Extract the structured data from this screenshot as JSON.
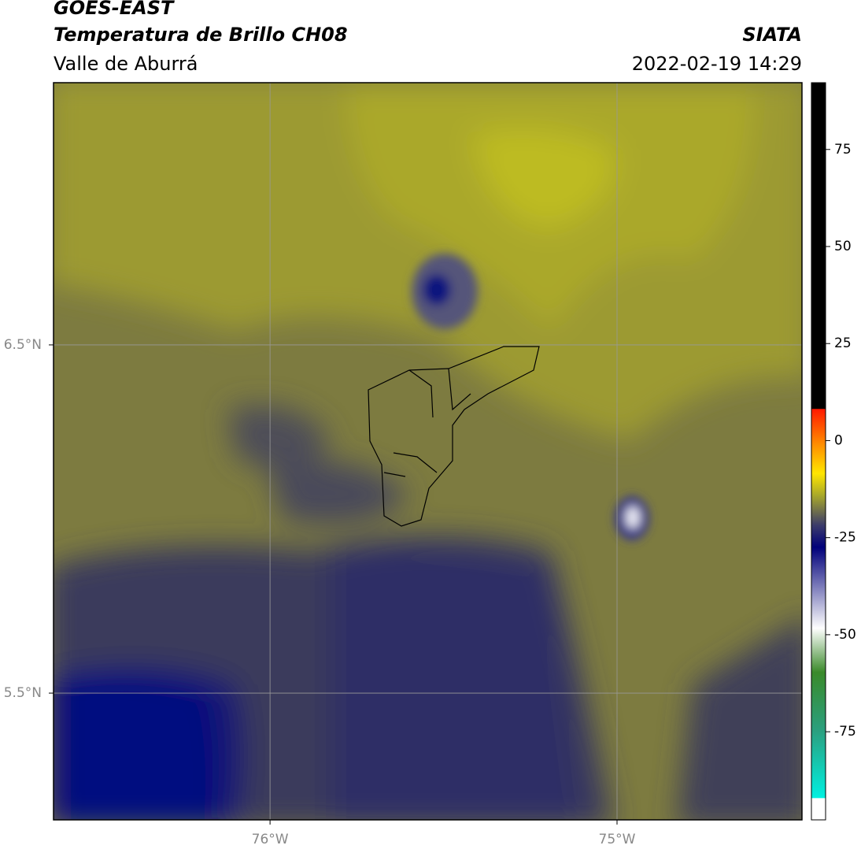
{
  "header": {
    "title": "GOES-EAST",
    "subtitle": "Temperatura de Brillo CH08",
    "region": "Valle de Aburrá",
    "source": "SIATA",
    "datetime": "2022-02-19 14:29"
  },
  "map": {
    "xlim": [
      -76.624,
      -74.467
    ],
    "ylim": [
      5.136,
      7.253
    ],
    "xticks": [
      {
        "value": -76,
        "label": "76°W"
      },
      {
        "value": -75,
        "label": "75°W"
      }
    ],
    "yticks": [
      {
        "value": 6.5,
        "label": "6.5°N"
      },
      {
        "value": 5.5,
        "label": "5.5°N"
      }
    ],
    "grid": true
  },
  "colorbar": {
    "lim": [
      -97.7,
      92.2
    ],
    "ticks": [
      75,
      50,
      25,
      0,
      -25,
      -50,
      -75
    ]
  }
}
